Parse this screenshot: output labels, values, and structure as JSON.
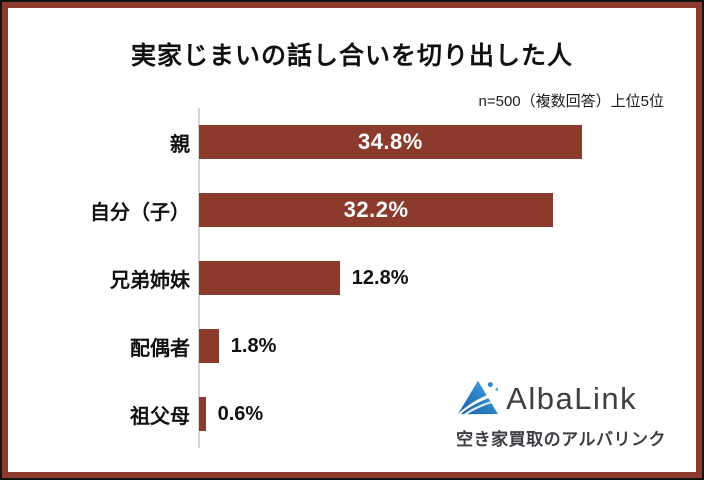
{
  "title": "実家じまいの話し合いを切り出した人",
  "note": "n=500（複数回答）上位5位",
  "chart_data": {
    "type": "bar",
    "orientation": "horizontal",
    "title": "実家じまいの話し合いを切り出した人",
    "note": "n=500（複数回答）上位5位",
    "categories": [
      "親",
      "自分（子）",
      "兄弟姉妹",
      "配偶者",
      "祖父母"
    ],
    "values": [
      34.8,
      32.2,
      12.8,
      1.8,
      0.6
    ],
    "value_labels": [
      "34.8%",
      "32.2%",
      "12.8%",
      "1.8%",
      "0.6%"
    ],
    "label_position": [
      "inside",
      "inside",
      "outside",
      "outside",
      "outside"
    ],
    "xlim": [
      0,
      40
    ],
    "bar_color": "#8B3A2B",
    "grid": false,
    "legend": false
  },
  "branding": {
    "logo_text": "AlbaLink",
    "tagline": "空き家買取のアルバリンク",
    "logo_icon": "mountain-triangle-icon"
  },
  "colors": {
    "frame_border": "#8B3A2B",
    "outer_edge": "#141414",
    "axis_line": "#D6D6D6",
    "bar": "#8B3A2B",
    "logo_dark_blue": "#1B5AA5",
    "logo_light_blue": "#4FAEE0",
    "logo_text_color": "#3E3E45"
  }
}
